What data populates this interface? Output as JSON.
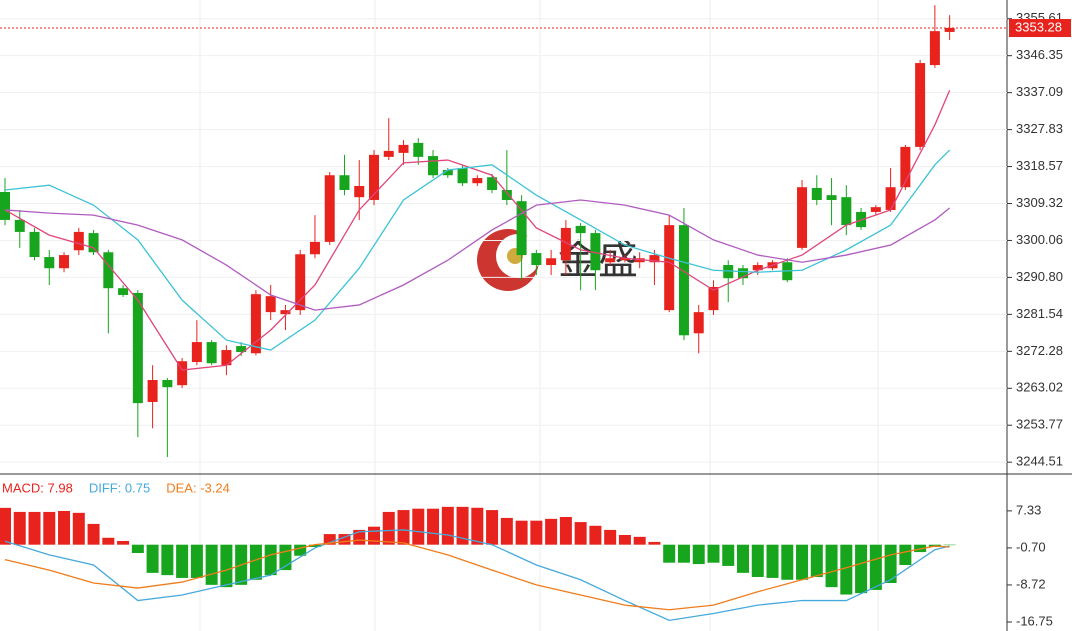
{
  "chart_data": [
    {
      "type": "candlestick",
      "up_color": "#e8231d",
      "down_color": "#16a51c",
      "open": [
        3312.2,
        3305.2,
        3302.2,
        3295.9,
        3293.1,
        3297.6,
        3301.9,
        3297.1,
        3288.1,
        3286.9,
        3259.6,
        3265.1,
        3263.8,
        3269.6,
        3274.6,
        3268.8,
        3273.6,
        3271.8,
        3282.1,
        3281.6,
        3282.6,
        3296.6,
        3299.7,
        3316.4,
        3310.9,
        3310.2,
        3321.0,
        3322.0,
        3324.5,
        3321.2,
        3317.7,
        3318.2,
        3314.4,
        3315.9,
        3312.7,
        3309.9,
        3296.9,
        3293.9,
        3295.1,
        3303.7,
        3301.9,
        3294.6,
        3295.1,
        3294.6,
        3294.6,
        3282.6,
        3303.9,
        3276.8,
        3282.6,
        3293.9,
        3293.1,
        3292.6,
        3293.1,
        3294.6,
        3298.2,
        3313.2,
        3311.4,
        3310.9,
        3307.2,
        3307.2,
        3307.7,
        3313.4,
        3323.5,
        3344.0,
        3352.3
      ],
      "high": [
        3315.7,
        3307.7,
        3303.2,
        3297.7,
        3297.1,
        3303.2,
        3302.7,
        3297.7,
        3288.9,
        3287.6,
        3268.8,
        3265.6,
        3270.6,
        3280.1,
        3275.1,
        3273.8,
        3274.6,
        3287.6,
        3288.9,
        3283.9,
        3297.7,
        3306.4,
        3317.2,
        3321.5,
        3320.2,
        3322.7,
        3330.7,
        3325.2,
        3325.7,
        3322.7,
        3318.2,
        3319.0,
        3316.4,
        3316.7,
        3322.7,
        3311.4,
        3297.7,
        3297.7,
        3305.2,
        3304.4,
        3302.7,
        3297.7,
        3296.4,
        3297.1,
        3297.7,
        3306.4,
        3308.2,
        3283.9,
        3290.1,
        3295.1,
        3293.9,
        3294.6,
        3295.1,
        3295.6,
        3315.2,
        3316.4,
        3315.7,
        3313.9,
        3308.2,
        3308.9,
        3318.2,
        3324.0,
        3345.3,
        3359.0,
        3356.5
      ],
      "low": [
        3303.9,
        3298.2,
        3295.1,
        3288.9,
        3292.1,
        3296.4,
        3296.4,
        3276.8,
        3285.9,
        3250.8,
        3253.0,
        3245.8,
        3263.1,
        3268.8,
        3268.8,
        3266.3,
        3271.1,
        3271.3,
        3280.1,
        3277.6,
        3281.4,
        3295.6,
        3298.9,
        3311.4,
        3305.2,
        3308.9,
        3320.2,
        3319.0,
        3319.0,
        3315.7,
        3315.7,
        3313.7,
        3313.7,
        3311.9,
        3308.9,
        3290.1,
        3291.4,
        3291.4,
        3291.4,
        3287.6,
        3287.6,
        3293.9,
        3294.6,
        3293.1,
        3288.9,
        3282.1,
        3275.1,
        3271.8,
        3281.4,
        3284.6,
        3288.9,
        3291.4,
        3292.6,
        3289.6,
        3297.7,
        3308.9,
        3303.9,
        3301.4,
        3302.7,
        3306.4,
        3307.2,
        3312.7,
        3322.7,
        3343.3,
        3350.3
      ],
      "close": [
        3305.2,
        3302.2,
        3295.9,
        3293.1,
        3296.4,
        3302.2,
        3297.1,
        3288.1,
        3286.4,
        3259.3,
        3265.1,
        3263.3,
        3269.8,
        3274.6,
        3269.3,
        3272.6,
        3272.1,
        3286.6,
        3286.1,
        3282.6,
        3296.6,
        3299.7,
        3316.4,
        3312.7,
        3313.7,
        3321.5,
        3322.5,
        3324.0,
        3321.0,
        3316.4,
        3316.4,
        3314.4,
        3315.7,
        3312.7,
        3310.2,
        3296.4,
        3293.9,
        3295.6,
        3303.2,
        3301.9,
        3292.6,
        3295.6,
        3295.6,
        3295.6,
        3296.4,
        3303.9,
        3276.3,
        3282.1,
        3288.4,
        3290.6,
        3290.6,
        3293.9,
        3294.6,
        3290.1,
        3313.4,
        3310.2,
        3310.2,
        3303.9,
        3303.4,
        3308.4,
        3313.4,
        3323.5,
        3344.5,
        3352.5,
        3353.3
      ],
      "series": [
        {
          "color": "#e0457b",
          "x": [
            0,
            3,
            6,
            9,
            12,
            15,
            18,
            21,
            24,
            27,
            30,
            33,
            36,
            39,
            42,
            45,
            48,
            51,
            54,
            57,
            60,
            63,
            64
          ],
          "values": [
            3307.7,
            3301.4,
            3298.2,
            3285.1,
            3267.6,
            3268.8,
            3277.6,
            3288.9,
            3307.7,
            3319.5,
            3320.2,
            3316.4,
            3303.2,
            3297.7,
            3295.6,
            3294.6,
            3287.6,
            3292.6,
            3296.4,
            3303.9,
            3307.7,
            3329.0,
            3337.7
          ]
        },
        {
          "color": "#3cc3d6",
          "x": [
            0,
            3,
            6,
            9,
            12,
            15,
            18,
            21,
            24,
            27,
            30,
            33,
            36,
            39,
            42,
            45,
            48,
            51,
            54,
            57,
            60,
            63,
            64
          ],
          "values": [
            3312.7,
            3313.9,
            3308.9,
            3300.2,
            3285.1,
            3275.1,
            3272.6,
            3280.1,
            3293.1,
            3310.2,
            3317.7,
            3319.0,
            3311.4,
            3305.2,
            3298.9,
            3295.6,
            3292.6,
            3292.1,
            3292.6,
            3297.7,
            3303.9,
            3319.0,
            3322.7
          ]
        },
        {
          "color": "#b05cc0",
          "x": [
            0,
            3,
            6,
            9,
            12,
            15,
            18,
            21,
            24,
            27,
            30,
            33,
            36,
            39,
            42,
            45,
            48,
            51,
            54,
            57,
            60,
            63,
            64
          ],
          "values": [
            3307.7,
            3306.9,
            3306.4,
            3303.9,
            3300.2,
            3293.9,
            3286.4,
            3282.6,
            3283.9,
            3288.9,
            3295.1,
            3302.7,
            3308.9,
            3310.2,
            3308.9,
            3306.4,
            3300.2,
            3296.4,
            3294.6,
            3296.4,
            3298.9,
            3305.2,
            3308.2
          ]
        }
      ],
      "ylim": [
        3241.8,
        3360.3
      ],
      "yticks": [
        3355.61,
        3346.35,
        3337.09,
        3327.83,
        3318.57,
        3309.32,
        3300.06,
        {
          "value": 3290.8,
          "label": "3290.80"
        },
        3281.54,
        3272.28,
        3263.02,
        3253.77,
        3244.51
      ],
      "last_price": 3353.28,
      "watermark": "金盛",
      "grid": true
    },
    {
      "type": "macd",
      "series": [
        {
          "name": "MACD: 7.98",
          "color": "#e8231d",
          "down_color": "#16a51c",
          "values": [
            7.98,
            7.1,
            7.1,
            7.1,
            7.3,
            6.9,
            4.5,
            1.5,
            0.8,
            -1.8,
            -6.1,
            -6.6,
            -7.2,
            -7.2,
            -8.7,
            -9.2,
            -8.7,
            -7.6,
            -6.6,
            -5.5,
            -2.4,
            -0.5,
            2.3,
            2.3,
            3.2,
            3.9,
            7.1,
            7.5,
            7.8,
            7.8,
            8.2,
            8.2,
            8.0,
            7.5,
            5.8,
            5.2,
            5.2,
            5.6,
            6.0,
            4.9,
            4.1,
            3.2,
            2.1,
            1.7,
            0.6,
            -3.9,
            -3.9,
            -4.2,
            -3.9,
            -4.6,
            -6.1,
            -7.0,
            -7.2,
            -7.6,
            -7.6,
            -7.0,
            -9.2,
            -10.8,
            -10.5,
            -9.8,
            -8.3,
            -4.4,
            -1.6,
            -0.5,
            -0.1
          ]
        },
        {
          "name": "DIFF: 0.75",
          "color": "#45a9dd",
          "x": [
            0,
            3,
            6,
            9,
            12,
            15,
            18,
            21,
            24,
            27,
            30,
            33,
            36,
            39,
            42,
            45,
            48,
            51,
            54,
            57,
            60,
            63,
            64
          ],
          "values": [
            0.75,
            -2.2,
            -4.4,
            -12.1,
            -10.9,
            -8.7,
            -6.6,
            -0.7,
            2.8,
            3.2,
            2.1,
            0.0,
            -4.4,
            -7.6,
            -12.1,
            -16.4,
            -14.9,
            -13.1,
            -12.1,
            -12.1,
            -7.6,
            -1.1,
            -0.3
          ]
        },
        {
          "name": "DEA: -3.24",
          "color": "#f07c1c",
          "x": [
            0,
            3,
            6,
            9,
            12,
            15,
            18,
            21,
            24,
            27,
            30,
            33,
            36,
            39,
            42,
            45,
            48,
            51,
            54,
            57,
            60,
            63,
            64
          ],
          "values": [
            -3.24,
            -5.5,
            -8.3,
            -9.4,
            -8.1,
            -5.5,
            -2.2,
            0.0,
            1.0,
            0.4,
            -2.2,
            -5.5,
            -8.7,
            -10.9,
            -13.1,
            -14.1,
            -13.1,
            -10.2,
            -7.6,
            -5.0,
            -2.2,
            -0.3,
            -0.5
          ]
        }
      ],
      "ylim": [
        -18.7,
        15.1
      ],
      "yticks": [
        7.33,
        {
          "value": -0.7,
          "label": "-0.70"
        },
        -8.72,
        -16.75
      ]
    }
  ]
}
